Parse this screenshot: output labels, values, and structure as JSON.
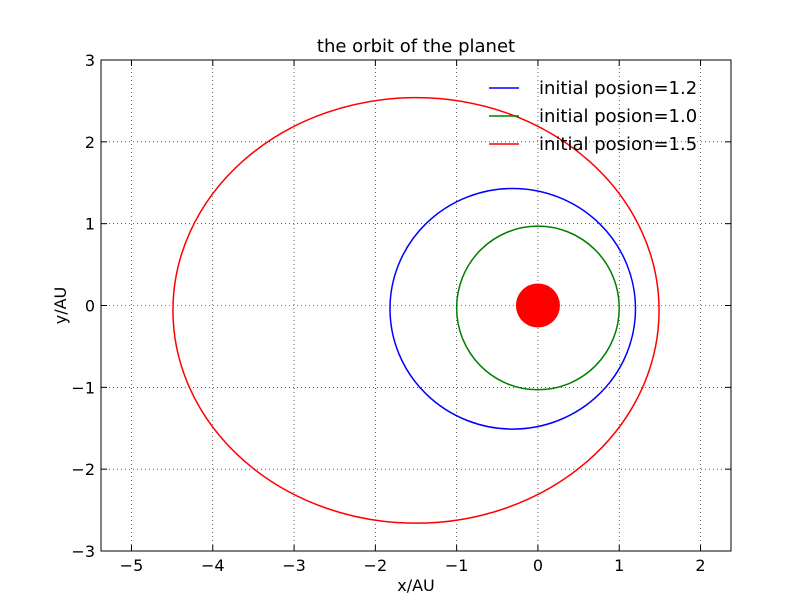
{
  "chart_data": {
    "type": "line",
    "title": "the orbit of the planet",
    "xlabel": "x/AU",
    "ylabel": "y/AU",
    "xlim": [
      -5.375,
      2.375
    ],
    "ylim": [
      -3,
      3
    ],
    "xticks": [
      -5,
      -4,
      -3,
      -2,
      -1,
      0,
      1,
      2
    ],
    "yticks": [
      -3,
      -2,
      -1,
      0,
      1,
      2,
      3
    ],
    "xtick_labels": [
      "−5",
      "−4",
      "−3",
      "−2",
      "−1",
      "0",
      "1",
      "2"
    ],
    "ytick_labels": [
      "−3",
      "−2",
      "−1",
      "0",
      "1",
      "2",
      "3"
    ],
    "grid": true,
    "legend_position": "top-right",
    "series": [
      {
        "name": "initial posion=1.2",
        "color": "#0000ff",
        "center": [
          -0.31,
          -0.04
        ],
        "radius_x": 1.51,
        "radius_y": 1.47
      },
      {
        "name": "initial posion=1.0",
        "color": "#008000",
        "center": [
          0.0,
          -0.03
        ],
        "radius_x": 1.0,
        "radius_y": 1.0
      },
      {
        "name": "initial posion=1.5",
        "color": "#ff0000",
        "center": [
          -1.5,
          -0.06
        ],
        "radius_x": 2.99,
        "radius_y": 2.6
      }
    ],
    "sun": {
      "center": [
        0,
        0
      ],
      "color": "#ff0000"
    }
  }
}
